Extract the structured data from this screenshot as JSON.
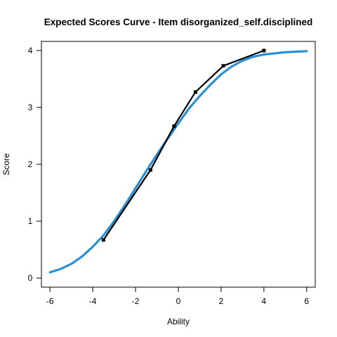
{
  "chart_data": {
    "type": "line",
    "title": "Expected Scores Curve - Item  disorganized_self.disciplined",
    "xlabel": "Ability",
    "ylabel": "Score",
    "xlim": [
      -6.4,
      6.4
    ],
    "ylim": [
      -0.16,
      4.16
    ],
    "x_ticks": [
      -6,
      -4,
      -2,
      0,
      2,
      4,
      6
    ],
    "y_ticks": [
      0,
      1,
      2,
      3,
      4
    ],
    "grid": false,
    "legend": "none",
    "series": [
      {
        "role": "expected-curve",
        "color": "#2b8fd6",
        "points": [
          [
            -6.0,
            0.1
          ],
          [
            -5.5,
            0.16
          ],
          [
            -5.0,
            0.25
          ],
          [
            -4.5,
            0.38
          ],
          [
            -4.0,
            0.55
          ],
          [
            -3.5,
            0.75
          ],
          [
            -3.0,
            1.0
          ],
          [
            -2.5,
            1.28
          ],
          [
            -2.0,
            1.58
          ],
          [
            -1.5,
            1.88
          ],
          [
            -1.0,
            2.17
          ],
          [
            -0.5,
            2.45
          ],
          [
            0.0,
            2.72
          ],
          [
            0.5,
            2.98
          ],
          [
            1.0,
            3.2
          ],
          [
            1.5,
            3.4
          ],
          [
            2.0,
            3.58
          ],
          [
            2.5,
            3.72
          ],
          [
            3.0,
            3.82
          ],
          [
            3.5,
            3.89
          ],
          [
            4.0,
            3.93
          ],
          [
            4.5,
            3.95
          ],
          [
            5.0,
            3.97
          ],
          [
            5.5,
            3.98
          ],
          [
            6.0,
            3.99
          ]
        ]
      },
      {
        "role": "observed",
        "color": "#000000",
        "points": [
          [
            -3.5,
            0.67
          ],
          [
            -1.3,
            1.9
          ],
          [
            -0.2,
            2.67
          ],
          [
            0.8,
            3.27
          ],
          [
            2.1,
            3.73
          ],
          [
            4.0,
            4.0
          ]
        ]
      }
    ]
  }
}
